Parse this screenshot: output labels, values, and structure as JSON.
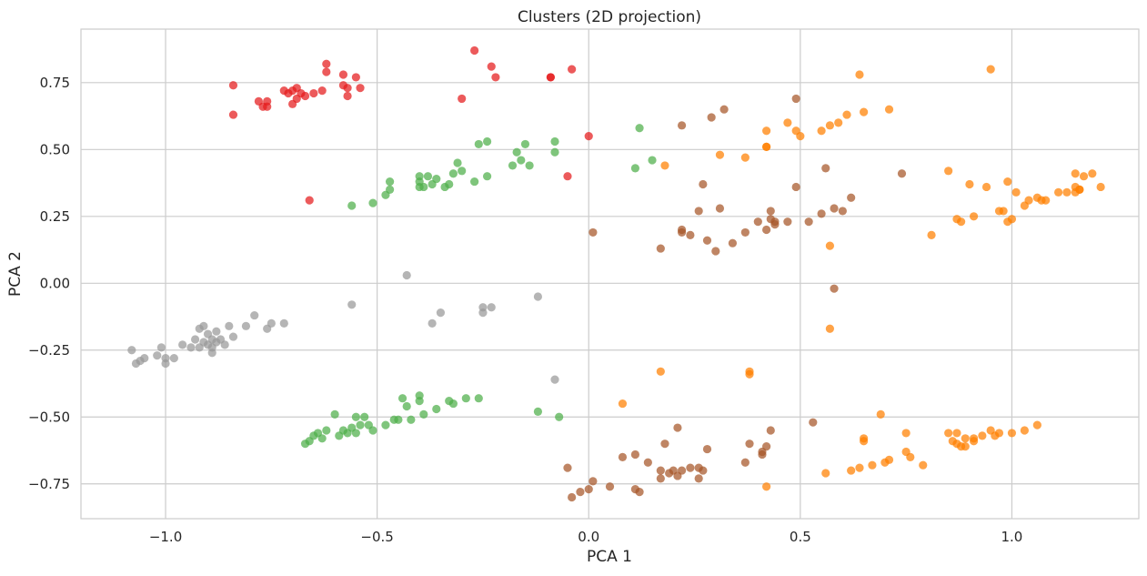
{
  "chart_data": {
    "type": "scatter",
    "title": "Clusters (2D projection)",
    "xlabel": "PCA 1",
    "ylabel": "PCA 2",
    "xlim": [
      -1.2,
      1.3
    ],
    "ylim": [
      -0.88,
      0.95
    ],
    "xticks": [
      -1.0,
      -0.5,
      0.0,
      0.5,
      1.0
    ],
    "xtick_labels": [
      "−1.0",
      "−0.5",
      "0.0",
      "0.5",
      "1.0"
    ],
    "yticks": [
      -0.75,
      -0.5,
      -0.25,
      0.0,
      0.25,
      0.5,
      0.75
    ],
    "ytick_labels": [
      "−0.75",
      "−0.50",
      "−0.25",
      "0.00",
      "0.25",
      "0.50",
      "0.75"
    ],
    "grid": true,
    "legend": "none",
    "series": [
      {
        "color": "#e41a1c",
        "points": [
          [
            -0.84,
            0.74
          ],
          [
            -0.84,
            0.63
          ],
          [
            -0.78,
            0.68
          ],
          [
            -0.77,
            0.66
          ],
          [
            -0.76,
            0.68
          ],
          [
            -0.76,
            0.66
          ],
          [
            -0.72,
            0.72
          ],
          [
            -0.71,
            0.71
          ],
          [
            -0.7,
            0.67
          ],
          [
            -0.7,
            0.72
          ],
          [
            -0.69,
            0.69
          ],
          [
            -0.69,
            0.73
          ],
          [
            -0.68,
            0.71
          ],
          [
            -0.67,
            0.7
          ],
          [
            -0.65,
            0.71
          ],
          [
            -0.63,
            0.72
          ],
          [
            -0.62,
            0.82
          ],
          [
            -0.62,
            0.79
          ],
          [
            -0.58,
            0.78
          ],
          [
            -0.58,
            0.74
          ],
          [
            -0.57,
            0.73
          ],
          [
            -0.57,
            0.7
          ],
          [
            -0.55,
            0.77
          ],
          [
            -0.54,
            0.73
          ],
          [
            -0.66,
            0.31
          ],
          [
            -0.27,
            0.87
          ],
          [
            -0.3,
            0.69
          ],
          [
            -0.23,
            0.81
          ],
          [
            -0.22,
            0.77
          ],
          [
            -0.09,
            0.77
          ],
          [
            -0.09,
            0.77
          ],
          [
            -0.04,
            0.8
          ],
          [
            -0.05,
            0.4
          ],
          [
            0.0,
            0.55
          ]
        ]
      },
      {
        "color": "#4daf4a",
        "points": [
          [
            -0.56,
            0.29
          ],
          [
            -0.51,
            0.3
          ],
          [
            -0.48,
            0.33
          ],
          [
            -0.47,
            0.35
          ],
          [
            -0.47,
            0.38
          ],
          [
            -0.4,
            0.36
          ],
          [
            -0.4,
            0.38
          ],
          [
            -0.4,
            0.4
          ],
          [
            -0.39,
            0.36
          ],
          [
            -0.38,
            0.4
          ],
          [
            -0.37,
            0.37
          ],
          [
            -0.36,
            0.39
          ],
          [
            -0.34,
            0.36
          ],
          [
            -0.33,
            0.37
          ],
          [
            -0.32,
            0.41
          ],
          [
            -0.31,
            0.45
          ],
          [
            -0.3,
            0.42
          ],
          [
            -0.27,
            0.38
          ],
          [
            -0.26,
            0.52
          ],
          [
            -0.24,
            0.4
          ],
          [
            -0.24,
            0.53
          ],
          [
            -0.18,
            0.44
          ],
          [
            -0.17,
            0.49
          ],
          [
            -0.16,
            0.46
          ],
          [
            -0.15,
            0.52
          ],
          [
            -0.14,
            0.44
          ],
          [
            -0.08,
            0.49
          ],
          [
            -0.08,
            0.53
          ],
          [
            0.11,
            0.43
          ],
          [
            0.12,
            0.58
          ],
          [
            0.15,
            0.46
          ],
          [
            -0.67,
            -0.6
          ],
          [
            -0.66,
            -0.59
          ],
          [
            -0.65,
            -0.57
          ],
          [
            -0.64,
            -0.56
          ],
          [
            -0.63,
            -0.58
          ],
          [
            -0.62,
            -0.55
          ],
          [
            -0.6,
            -0.49
          ],
          [
            -0.59,
            -0.57
          ],
          [
            -0.58,
            -0.55
          ],
          [
            -0.57,
            -0.56
          ],
          [
            -0.56,
            -0.54
          ],
          [
            -0.55,
            -0.5
          ],
          [
            -0.55,
            -0.56
          ],
          [
            -0.54,
            -0.53
          ],
          [
            -0.53,
            -0.5
          ],
          [
            -0.52,
            -0.53
          ],
          [
            -0.51,
            -0.55
          ],
          [
            -0.48,
            -0.53
          ],
          [
            -0.46,
            -0.51
          ],
          [
            -0.45,
            -0.51
          ],
          [
            -0.44,
            -0.43
          ],
          [
            -0.43,
            -0.46
          ],
          [
            -0.42,
            -0.51
          ],
          [
            -0.4,
            -0.42
          ],
          [
            -0.4,
            -0.44
          ],
          [
            -0.39,
            -0.49
          ],
          [
            -0.36,
            -0.47
          ],
          [
            -0.33,
            -0.44
          ],
          [
            -0.32,
            -0.45
          ],
          [
            -0.29,
            -0.43
          ],
          [
            -0.26,
            -0.43
          ],
          [
            -0.12,
            -0.48
          ],
          [
            -0.07,
            -0.5
          ]
        ]
      },
      {
        "color": "#999999",
        "points": [
          [
            -1.08,
            -0.25
          ],
          [
            -1.07,
            -0.3
          ],
          [
            -1.06,
            -0.29
          ],
          [
            -1.05,
            -0.28
          ],
          [
            -1.02,
            -0.27
          ],
          [
            -1.01,
            -0.24
          ],
          [
            -1.0,
            -0.28
          ],
          [
            -1.0,
            -0.3
          ],
          [
            -0.98,
            -0.28
          ],
          [
            -0.96,
            -0.23
          ],
          [
            -0.94,
            -0.24
          ],
          [
            -0.93,
            -0.21
          ],
          [
            -0.92,
            -0.24
          ],
          [
            -0.92,
            -0.17
          ],
          [
            -0.91,
            -0.22
          ],
          [
            -0.91,
            -0.16
          ],
          [
            -0.9,
            -0.19
          ],
          [
            -0.9,
            -0.23
          ],
          [
            -0.89,
            -0.26
          ],
          [
            -0.89,
            -0.21
          ],
          [
            -0.89,
            -0.24
          ],
          [
            -0.88,
            -0.18
          ],
          [
            -0.88,
            -0.22
          ],
          [
            -0.87,
            -0.21
          ],
          [
            -0.86,
            -0.23
          ],
          [
            -0.85,
            -0.16
          ],
          [
            -0.84,
            -0.2
          ],
          [
            -0.81,
            -0.16
          ],
          [
            -0.79,
            -0.12
          ],
          [
            -0.76,
            -0.17
          ],
          [
            -0.75,
            -0.15
          ],
          [
            -0.72,
            -0.15
          ],
          [
            -0.56,
            -0.08
          ],
          [
            -0.43,
            0.03
          ],
          [
            -0.37,
            -0.15
          ],
          [
            -0.35,
            -0.11
          ],
          [
            -0.25,
            -0.11
          ],
          [
            -0.25,
            -0.09
          ],
          [
            -0.23,
            -0.09
          ],
          [
            -0.12,
            -0.05
          ],
          [
            -0.08,
            -0.36
          ]
        ]
      },
      {
        "color": "#a65628",
        "points": [
          [
            0.01,
            0.19
          ],
          [
            0.17,
            0.13
          ],
          [
            0.22,
            0.59
          ],
          [
            0.22,
            0.19
          ],
          [
            0.22,
            0.2
          ],
          [
            0.24,
            0.18
          ],
          [
            0.26,
            0.27
          ],
          [
            0.27,
            0.37
          ],
          [
            0.28,
            0.16
          ],
          [
            0.29,
            0.62
          ],
          [
            0.3,
            0.12
          ],
          [
            0.31,
            0.28
          ],
          [
            0.32,
            0.65
          ],
          [
            0.34,
            0.15
          ],
          [
            0.37,
            0.19
          ],
          [
            0.4,
            0.23
          ],
          [
            0.42,
            0.2
          ],
          [
            0.43,
            0.24
          ],
          [
            0.43,
            0.27
          ],
          [
            0.44,
            0.22
          ],
          [
            0.44,
            0.23
          ],
          [
            0.47,
            0.23
          ],
          [
            0.49,
            0.36
          ],
          [
            0.49,
            0.69
          ],
          [
            0.52,
            0.23
          ],
          [
            0.55,
            0.26
          ],
          [
            0.56,
            0.43
          ],
          [
            0.58,
            0.28
          ],
          [
            0.58,
            -0.02
          ],
          [
            0.6,
            0.27
          ],
          [
            0.62,
            0.32
          ],
          [
            0.74,
            0.41
          ],
          [
            -0.05,
            -0.69
          ],
          [
            -0.04,
            -0.8
          ],
          [
            -0.02,
            -0.78
          ],
          [
            0.0,
            -0.77
          ],
          [
            0.01,
            -0.74
          ],
          [
            0.05,
            -0.76
          ],
          [
            0.08,
            -0.65
          ],
          [
            0.11,
            -0.77
          ],
          [
            0.11,
            -0.64
          ],
          [
            0.12,
            -0.78
          ],
          [
            0.14,
            -0.67
          ],
          [
            0.17,
            -0.7
          ],
          [
            0.17,
            -0.73
          ],
          [
            0.18,
            -0.6
          ],
          [
            0.19,
            -0.71
          ],
          [
            0.2,
            -0.7
          ],
          [
            0.21,
            -0.72
          ],
          [
            0.21,
            -0.54
          ],
          [
            0.22,
            -0.7
          ],
          [
            0.24,
            -0.69
          ],
          [
            0.26,
            -0.73
          ],
          [
            0.26,
            -0.69
          ],
          [
            0.27,
            -0.7
          ],
          [
            0.28,
            -0.62
          ],
          [
            0.37,
            -0.67
          ],
          [
            0.38,
            -0.6
          ],
          [
            0.41,
            -0.64
          ],
          [
            0.41,
            -0.63
          ],
          [
            0.42,
            -0.61
          ],
          [
            0.43,
            -0.55
          ],
          [
            0.53,
            -0.52
          ]
        ]
      },
      {
        "color": "#ff7f00",
        "points": [
          [
            0.18,
            0.44
          ],
          [
            0.31,
            0.48
          ],
          [
            0.37,
            0.47
          ],
          [
            0.42,
            0.51
          ],
          [
            0.42,
            0.51
          ],
          [
            0.42,
            0.57
          ],
          [
            0.47,
            0.6
          ],
          [
            0.49,
            0.57
          ],
          [
            0.5,
            0.55
          ],
          [
            0.55,
            0.57
          ],
          [
            0.57,
            0.14
          ],
          [
            0.57,
            0.59
          ],
          [
            0.59,
            0.6
          ],
          [
            0.61,
            0.63
          ],
          [
            0.64,
            0.78
          ],
          [
            0.65,
            0.64
          ],
          [
            0.71,
            0.65
          ],
          [
            0.81,
            0.18
          ],
          [
            0.85,
            0.42
          ],
          [
            0.87,
            0.24
          ],
          [
            0.88,
            0.23
          ],
          [
            0.9,
            0.37
          ],
          [
            0.91,
            0.25
          ],
          [
            0.94,
            0.36
          ],
          [
            0.95,
            0.8
          ],
          [
            0.97,
            0.27
          ],
          [
            0.98,
            0.27
          ],
          [
            0.99,
            0.38
          ],
          [
            0.99,
            0.23
          ],
          [
            1.0,
            0.24
          ],
          [
            1.01,
            0.34
          ],
          [
            1.03,
            0.29
          ],
          [
            1.04,
            0.31
          ],
          [
            1.06,
            0.32
          ],
          [
            1.07,
            0.31
          ],
          [
            1.08,
            0.31
          ],
          [
            1.11,
            0.34
          ],
          [
            1.13,
            0.34
          ],
          [
            1.15,
            0.34
          ],
          [
            1.15,
            0.36
          ],
          [
            1.15,
            0.41
          ],
          [
            1.16,
            0.35
          ],
          [
            1.16,
            0.35
          ],
          [
            1.17,
            0.4
          ],
          [
            1.19,
            0.41
          ],
          [
            1.21,
            0.36
          ],
          [
            0.57,
            -0.17
          ],
          [
            0.17,
            -0.33
          ],
          [
            0.38,
            -0.34
          ],
          [
            0.38,
            -0.33
          ],
          [
            0.08,
            -0.45
          ],
          [
            0.42,
            -0.76
          ],
          [
            0.56,
            -0.71
          ],
          [
            0.62,
            -0.7
          ],
          [
            0.64,
            -0.69
          ],
          [
            0.65,
            -0.58
          ],
          [
            0.65,
            -0.59
          ],
          [
            0.67,
            -0.68
          ],
          [
            0.69,
            -0.49
          ],
          [
            0.7,
            -0.67
          ],
          [
            0.71,
            -0.66
          ],
          [
            0.75,
            -0.56
          ],
          [
            0.75,
            -0.63
          ],
          [
            0.76,
            -0.65
          ],
          [
            0.79,
            -0.68
          ],
          [
            0.85,
            -0.56
          ],
          [
            0.86,
            -0.59
          ],
          [
            0.87,
            -0.56
          ],
          [
            0.87,
            -0.6
          ],
          [
            0.88,
            -0.61
          ],
          [
            0.89,
            -0.58
          ],
          [
            0.89,
            -0.61
          ],
          [
            0.91,
            -0.59
          ],
          [
            0.91,
            -0.58
          ],
          [
            0.93,
            -0.57
          ],
          [
            0.95,
            -0.55
          ],
          [
            0.96,
            -0.57
          ],
          [
            0.97,
            -0.56
          ],
          [
            1.0,
            -0.56
          ],
          [
            1.03,
            -0.55
          ],
          [
            1.06,
            -0.53
          ]
        ]
      }
    ]
  }
}
